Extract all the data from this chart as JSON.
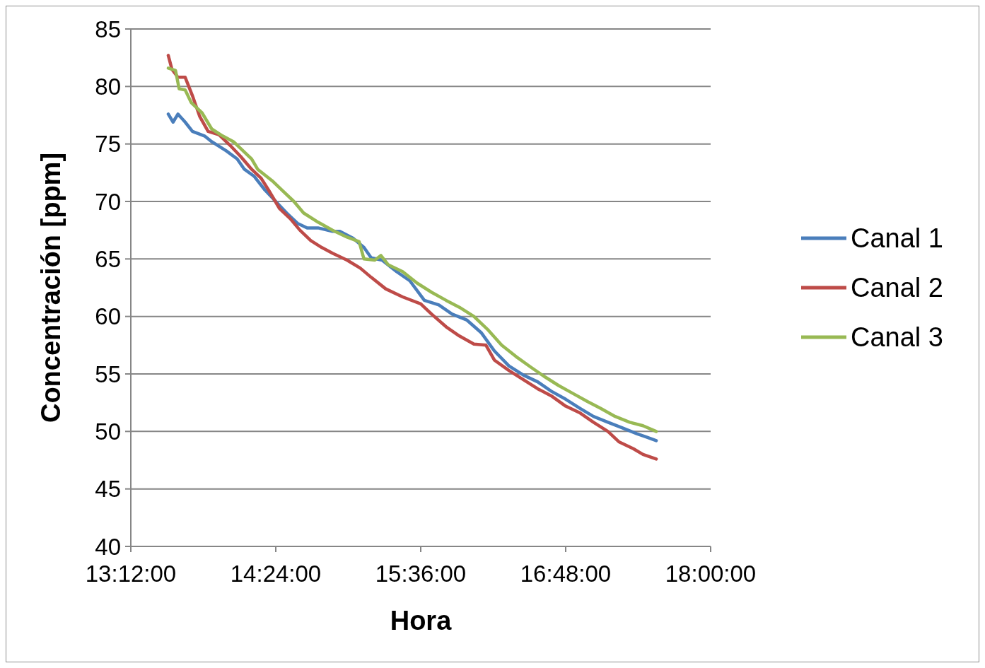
{
  "chart_data": {
    "type": "line",
    "xlabel": "Hora",
    "ylabel": "Concentración [ppm]",
    "xlim": [
      13.2,
      18.0
    ],
    "xticks": [
      {
        "value": 13.2,
        "label": "13:12:00"
      },
      {
        "value": 14.4,
        "label": "14:24:00"
      },
      {
        "value": 15.6,
        "label": "15:36:00"
      },
      {
        "value": 16.8,
        "label": "16:48:00"
      },
      {
        "value": 18.0,
        "label": "18:00:00"
      }
    ],
    "ylim": [
      40,
      85
    ],
    "yticks": [
      40,
      45,
      50,
      55,
      60,
      65,
      70,
      75,
      80,
      85
    ],
    "grid": "y",
    "legend": "right",
    "marker": "none",
    "line_style": "solid",
    "series": [
      {
        "name": "Canal 1",
        "color": "#4a7ebb",
        "x": [
          13.51,
          13.55,
          13.59,
          13.65,
          13.71,
          13.81,
          13.87,
          13.99,
          14.08,
          14.14,
          14.22,
          14.31,
          14.4,
          14.49,
          14.58,
          14.66,
          14.75,
          14.87,
          14.93,
          15.04,
          15.13,
          15.19,
          15.28,
          15.4,
          15.51,
          15.63,
          15.75,
          15.86,
          15.98,
          16.1,
          16.21,
          16.33,
          16.45,
          16.57,
          16.68,
          16.8,
          16.92,
          17.03,
          17.15,
          17.27,
          17.39,
          17.47,
          17.55
        ],
        "values": [
          77.6,
          76.9,
          77.6,
          76.9,
          76.1,
          75.7,
          75.2,
          74.4,
          73.7,
          72.8,
          72.2,
          71.0,
          70.0,
          69.0,
          68.1,
          67.7,
          67.7,
          67.4,
          67.4,
          66.8,
          66.0,
          65.1,
          64.9,
          63.9,
          63.1,
          61.4,
          61.0,
          60.2,
          59.7,
          58.6,
          57.0,
          55.7,
          54.9,
          54.3,
          53.5,
          52.8,
          52.0,
          51.3,
          50.8,
          50.3,
          49.8,
          49.5,
          49.2
        ]
      },
      {
        "name": "Canal 2",
        "color": "#be4b48",
        "x": [
          13.51,
          13.54,
          13.59,
          13.65,
          13.71,
          13.77,
          13.84,
          13.93,
          14.02,
          14.11,
          14.2,
          14.28,
          14.34,
          14.43,
          14.52,
          14.6,
          14.69,
          14.78,
          14.87,
          14.99,
          15.1,
          15.19,
          15.31,
          15.45,
          15.6,
          15.69,
          15.81,
          15.92,
          16.04,
          16.14,
          16.21,
          16.33,
          16.45,
          16.57,
          16.68,
          16.8,
          16.92,
          17.03,
          17.15,
          17.24,
          17.36,
          17.44,
          17.55
        ],
        "values": [
          82.7,
          81.5,
          80.8,
          80.8,
          79.2,
          77.4,
          76.1,
          75.8,
          74.9,
          73.9,
          72.8,
          72.0,
          71.0,
          69.4,
          68.5,
          67.5,
          66.6,
          66.0,
          65.5,
          64.9,
          64.2,
          63.4,
          62.4,
          61.7,
          61.1,
          60.2,
          59.1,
          58.3,
          57.6,
          57.5,
          56.2,
          55.3,
          54.5,
          53.7,
          53.1,
          52.2,
          51.6,
          50.8,
          50.0,
          49.1,
          48.5,
          48.0,
          47.6
        ]
      },
      {
        "name": "Canal 3",
        "color": "#98b954",
        "x": [
          13.51,
          13.57,
          13.6,
          13.65,
          13.7,
          13.79,
          13.87,
          13.96,
          14.05,
          14.14,
          14.2,
          14.25,
          14.37,
          14.46,
          14.55,
          14.63,
          14.75,
          14.87,
          14.99,
          15.09,
          15.13,
          15.22,
          15.27,
          15.33,
          15.45,
          15.57,
          15.69,
          15.81,
          15.92,
          16.04,
          16.16,
          16.27,
          16.39,
          16.51,
          16.62,
          16.74,
          16.86,
          16.98,
          17.09,
          17.21,
          17.33,
          17.44,
          17.55
        ],
        "values": [
          81.6,
          81.4,
          79.8,
          79.7,
          78.6,
          77.7,
          76.3,
          75.7,
          75.2,
          74.3,
          73.7,
          72.8,
          71.8,
          70.9,
          70.0,
          69.0,
          68.2,
          67.5,
          66.9,
          66.5,
          65.0,
          64.9,
          65.3,
          64.5,
          63.9,
          62.9,
          62.1,
          61.4,
          60.8,
          60.0,
          58.8,
          57.5,
          56.5,
          55.6,
          54.8,
          54.0,
          53.3,
          52.6,
          52.0,
          51.3,
          50.8,
          50.5,
          50.0
        ]
      }
    ]
  }
}
